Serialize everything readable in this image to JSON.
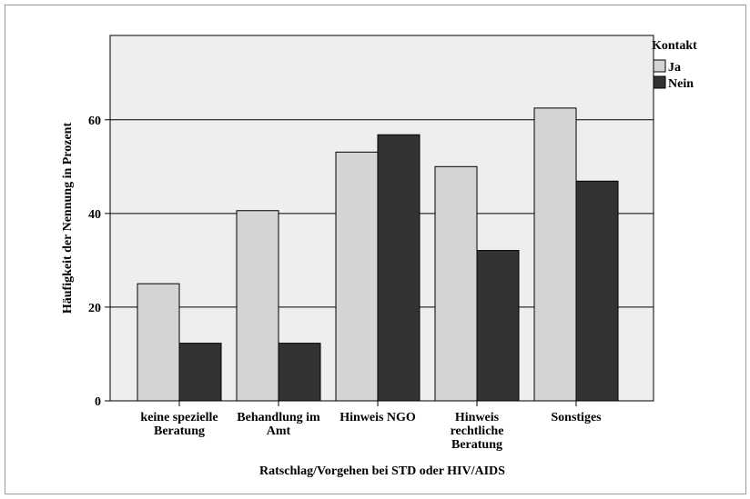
{
  "chart_data": {
    "type": "bar",
    "categories": [
      [
        "keine spezielle",
        "Beratung"
      ],
      [
        "Behandlung im",
        "Amt"
      ],
      [
        "Hinweis NGO"
      ],
      [
        "Hinweis",
        "rechtliche",
        "Beratung"
      ],
      [
        "Sonstiges"
      ]
    ],
    "series": [
      {
        "name": "Ja",
        "values": [
          25.0,
          40.6,
          53.1,
          50.0,
          62.5
        ],
        "color": "#d4d4d4"
      },
      {
        "name": "Nein",
        "values": [
          12.3,
          12.3,
          56.8,
          32.1,
          46.9
        ],
        "color": "#333333"
      }
    ],
    "title": "",
    "xlabel": "Ratschlag/Vorgehen bei STD oder HIV/AIDS",
    "ylabel": "Häufigkeit der Nennung in Prozent",
    "ylim": [
      0,
      78
    ],
    "yticks": [
      0,
      20,
      40,
      60
    ],
    "legend": {
      "title": "Kontakt",
      "position": "right"
    },
    "grid": true,
    "plot_background": "#eeeeee"
  }
}
